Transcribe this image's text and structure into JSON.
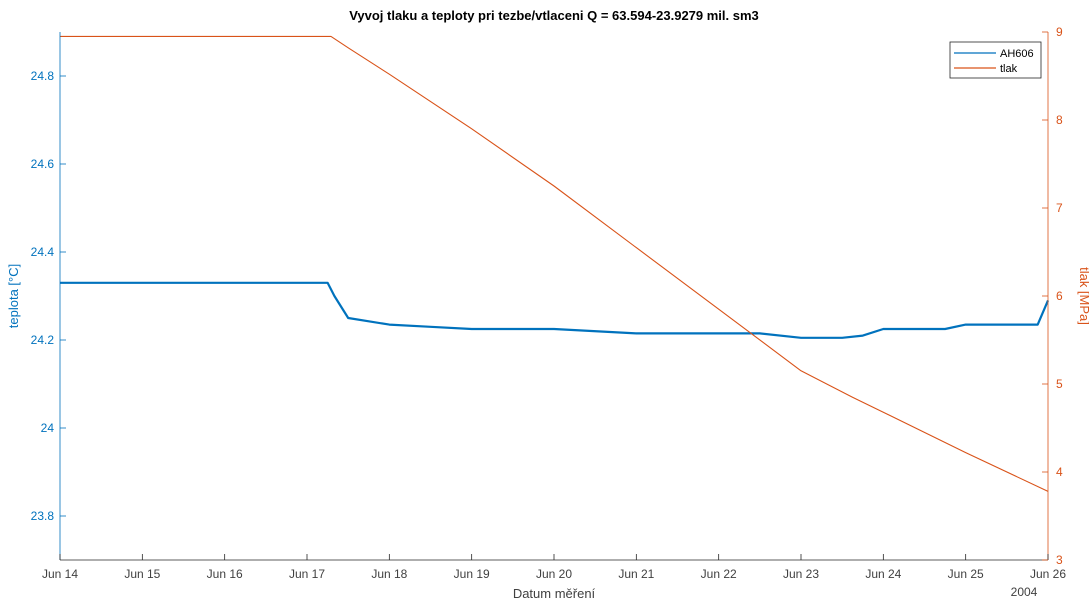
{
  "chart_data": {
    "type": "line",
    "title": "Vyvoj tlaku a teploty pri tezbe/vtlaceni Q = 63.594-23.9279 mil. sm3",
    "xlabel": "Datum měření",
    "ylabel_left": "teplota [°C]",
    "ylabel_right": "tlak [MPa]",
    "x_year_label": "2004",
    "x_ticks": [
      "Jun 14",
      "Jun 15",
      "Jun 16",
      "Jun 17",
      "Jun 18",
      "Jun 19",
      "Jun 20",
      "Jun 21",
      "Jun 22",
      "Jun 23",
      "Jun 24",
      "Jun 25",
      "Jun 26"
    ],
    "x_range": [
      "2004-06-14",
      "2004-06-26"
    ],
    "ylim_left": [
      23.7,
      24.9
    ],
    "ylim_right": [
      3,
      9
    ],
    "yticks_left": [
      "23.8",
      "24",
      "24.2",
      "24.4",
      "24.6",
      "24.8"
    ],
    "yticks_right": [
      "3",
      "4",
      "5",
      "6",
      "7",
      "8",
      "9"
    ],
    "grid": false,
    "legend_position": "top-right",
    "series": [
      {
        "name": "AH606",
        "axis": "left",
        "color": "#0072bd",
        "x": [
          "2004-06-14 00:00",
          "2004-06-17 06:00",
          "2004-06-17 08:00",
          "2004-06-17 12:00",
          "2004-06-18 00:00",
          "2004-06-18 12:00",
          "2004-06-19 00:00",
          "2004-06-20 00:00",
          "2004-06-21 00:00",
          "2004-06-22 00:00",
          "2004-06-22 12:00",
          "2004-06-23 00:00",
          "2004-06-23 12:00",
          "2004-06-23 18:00",
          "2004-06-24 00:00",
          "2004-06-24 18:00",
          "2004-06-25 00:00",
          "2004-06-25 21:00",
          "2004-06-26 00:00"
        ],
        "y": [
          24.33,
          24.33,
          24.3,
          24.25,
          24.235,
          24.23,
          24.225,
          24.225,
          24.215,
          24.215,
          24.215,
          24.205,
          24.205,
          24.21,
          24.225,
          24.225,
          24.235,
          24.235,
          24.29
        ]
      },
      {
        "name": "tlak",
        "axis": "right",
        "color": "#d95319",
        "x": [
          "2004-06-14 00:00",
          "2004-06-17 07:00",
          "2004-06-17 12:00",
          "2004-06-18 00:00",
          "2004-06-19 00:00",
          "2004-06-20 00:00",
          "2004-06-21 00:00",
          "2004-06-22 00:00",
          "2004-06-23 00:00",
          "2004-06-23 15:00",
          "2004-06-24 00:00",
          "2004-06-25 00:00",
          "2004-06-26 00:00"
        ],
        "y": [
          8.95,
          8.95,
          8.82,
          8.52,
          7.9,
          7.25,
          6.55,
          5.85,
          5.15,
          4.85,
          4.68,
          4.22,
          3.78
        ]
      }
    ]
  }
}
